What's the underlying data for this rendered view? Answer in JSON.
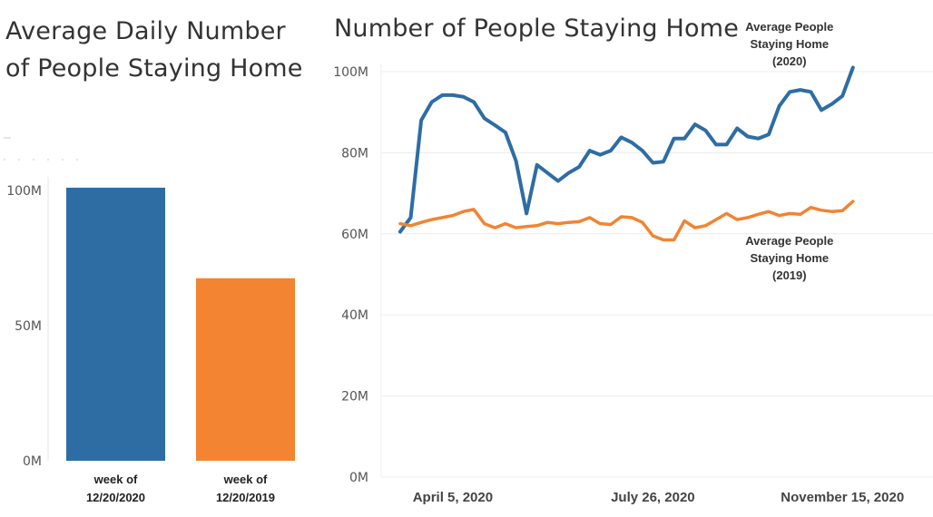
{
  "chart_data": [
    {
      "type": "bar",
      "title": "Average Daily Number of People Staying Home",
      "categories": [
        {
          "line1": "week of",
          "line2": "12/20/2020"
        },
        {
          "line1": "week of",
          "line2": "12/20/2019"
        }
      ],
      "values": [
        101,
        67.5
      ],
      "colors": [
        "#2e6da4",
        "#f28432"
      ],
      "ylim": [
        0,
        105
      ],
      "yticks": [
        0,
        50,
        100
      ],
      "ytick_labels": [
        "0M",
        "50M",
        "100M"
      ],
      "xlabel": "",
      "ylabel": "",
      "grid": false
    },
    {
      "type": "line",
      "title": "Number of People Staying Home",
      "x": [
        1,
        2,
        3,
        4,
        5,
        6,
        7,
        8,
        9,
        10,
        11,
        12,
        13,
        14,
        15,
        16,
        17,
        18,
        19,
        20,
        21,
        22,
        23,
        24,
        25,
        26,
        27,
        28,
        29,
        30,
        31,
        32,
        33,
        34,
        35,
        36,
        37,
        38,
        39,
        40,
        41,
        42,
        43,
        44,
        45,
        46,
        47,
        48,
        49,
        50
      ],
      "xlim": [
        -0.8,
        51.6
      ],
      "xticks": [
        6,
        25,
        43
      ],
      "xtick_labels": [
        "April 5, 2020",
        "July 26, 2020",
        "November 15, 2020"
      ],
      "ylim": [
        0,
        102
      ],
      "yticks": [
        0,
        20,
        40,
        60,
        80,
        100
      ],
      "ytick_labels": [
        "0M",
        "20M",
        "40M",
        "60M",
        "80M",
        "100M"
      ],
      "grid": true,
      "series": [
        {
          "name": "Average People Staying Home (2020)",
          "color": "#2e6da4",
          "values": [
            60.5,
            64,
            88,
            92.5,
            94.2,
            94.2,
            93.8,
            92.5,
            88.5,
            86.8,
            85,
            78,
            65,
            77,
            75,
            73,
            75,
            76.5,
            80.5,
            79.5,
            80.5,
            83.8,
            82.5,
            80.5,
            77.5,
            77.8,
            83.5,
            83.5,
            87,
            85.5,
            82,
            82,
            86,
            84,
            83.5,
            84.5,
            91.5,
            95,
            95.5,
            95,
            90.5,
            92,
            94,
            101,
            null,
            null,
            null,
            null,
            null,
            null
          ]
        },
        {
          "name": "Average People Staying Home (2019)",
          "color": "#f28432",
          "values": [
            62.5,
            62,
            62.8,
            63.5,
            64,
            64.5,
            65.5,
            66,
            62.5,
            61.5,
            62.5,
            61.5,
            61.8,
            62,
            62.8,
            62.5,
            62.8,
            63,
            64,
            62.5,
            62.3,
            64.2,
            64,
            62.8,
            59.5,
            58.5,
            58.5,
            63.2,
            61.5,
            62,
            63.5,
            65,
            63.5,
            64,
            64.8,
            65.5,
            64.5,
            65,
            64.8,
            66.5,
            65.8,
            65.5,
            65.7,
            68,
            null,
            null,
            null,
            null,
            null,
            null
          ]
        }
      ],
      "annotations": [
        {
          "series": 0,
          "lines": [
            "Average People",
            "Staying Home",
            "(2020)"
          ]
        },
        {
          "series": 1,
          "lines": [
            "Average People",
            "Staying Home",
            "(2019)"
          ]
        }
      ]
    }
  ]
}
